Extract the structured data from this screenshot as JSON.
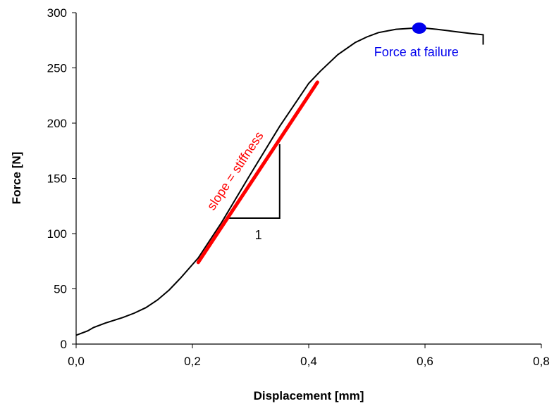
{
  "chart_data": {
    "type": "line",
    "title": "",
    "xlabel": "Displacement [mm]",
    "ylabel": "Force [N]",
    "xlim": [
      0,
      0.8
    ],
    "ylim": [
      0,
      300
    ],
    "x_ticks": [
      "0,0",
      "0,2",
      "0,4",
      "0,6",
      "0,8"
    ],
    "y_ticks": [
      "0",
      "50",
      "100",
      "150",
      "200",
      "250",
      "300"
    ],
    "grid": false,
    "series": [
      {
        "color": "#000000",
        "x": [
          0.0,
          0.01,
          0.02,
          0.03,
          0.05,
          0.08,
          0.1,
          0.12,
          0.14,
          0.16,
          0.18,
          0.2,
          0.21,
          0.22,
          0.25,
          0.3,
          0.35,
          0.4,
          0.42,
          0.45,
          0.48,
          0.5,
          0.52,
          0.55,
          0.58,
          0.6,
          0.62,
          0.65,
          0.68,
          0.7,
          0.7
        ],
        "y": [
          8,
          10,
          12,
          15,
          19,
          24,
          28,
          33,
          40,
          49,
          60,
          72,
          78,
          86,
          110,
          154,
          197,
          236,
          247,
          262,
          273,
          278,
          282,
          285,
          286,
          286,
          285,
          283,
          281,
          280,
          271
        ]
      }
    ],
    "fit_line": {
      "color": "#ff0000",
      "x": [
        0.21,
        0.415
      ],
      "y": [
        74,
        237
      ],
      "label": "slope = stiffness"
    },
    "slope_triangle": {
      "x": [
        0.26,
        0.35
      ],
      "y": [
        114,
        181
      ],
      "label": "1"
    },
    "failure_point": {
      "x": 0.59,
      "y": 286,
      "color": "#0000ee",
      "label": "Force at failure"
    }
  }
}
